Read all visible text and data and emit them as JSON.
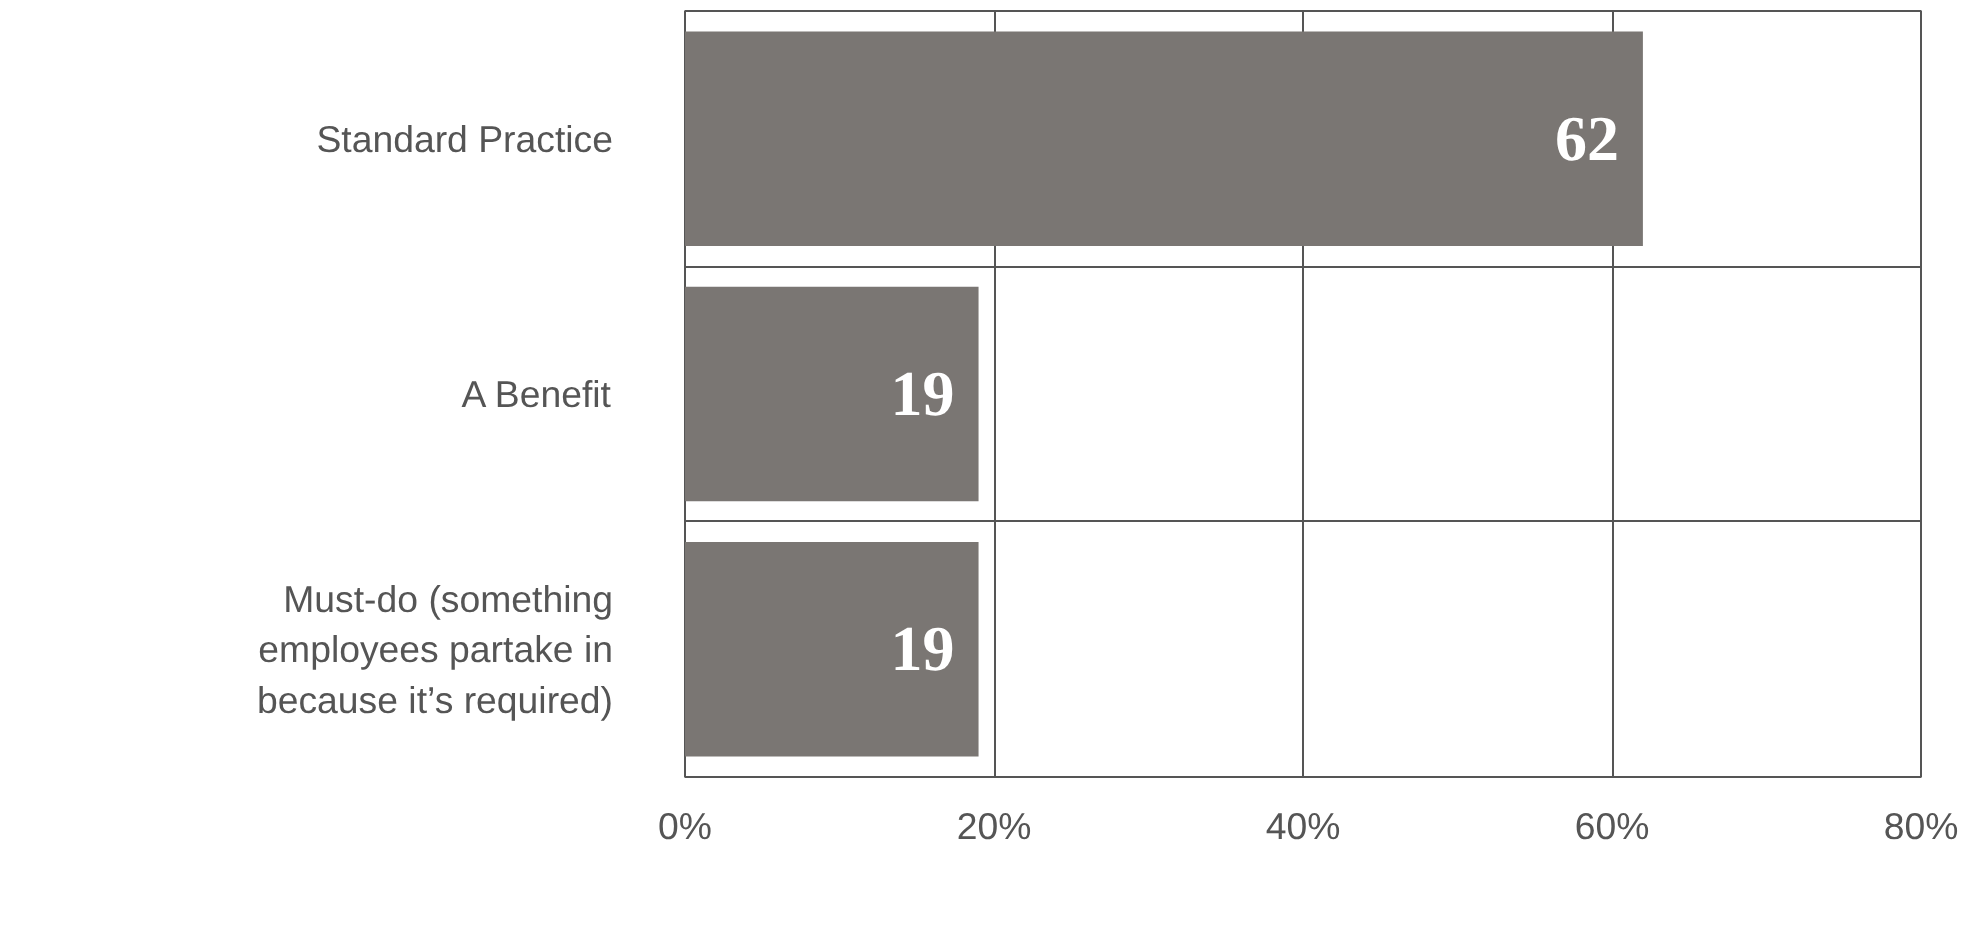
{
  "chart_data": {
    "type": "bar",
    "orientation": "horizontal",
    "categories": [
      "Standard Practice",
      "A Benefit",
      "Must-do (something employees partake in because it’s required)"
    ],
    "values": [
      62,
      19,
      19
    ],
    "color": "#7a7673",
    "xlim": [
      0,
      80
    ],
    "xticks": [
      {
        "value": 0,
        "label": "0%"
      },
      {
        "value": 20,
        "label": "20%"
      },
      {
        "value": 40,
        "label": "40%"
      },
      {
        "value": 60,
        "label": "60%"
      },
      {
        "value": 80,
        "label": "80%"
      }
    ],
    "grid": "x",
    "data_labels": true
  }
}
